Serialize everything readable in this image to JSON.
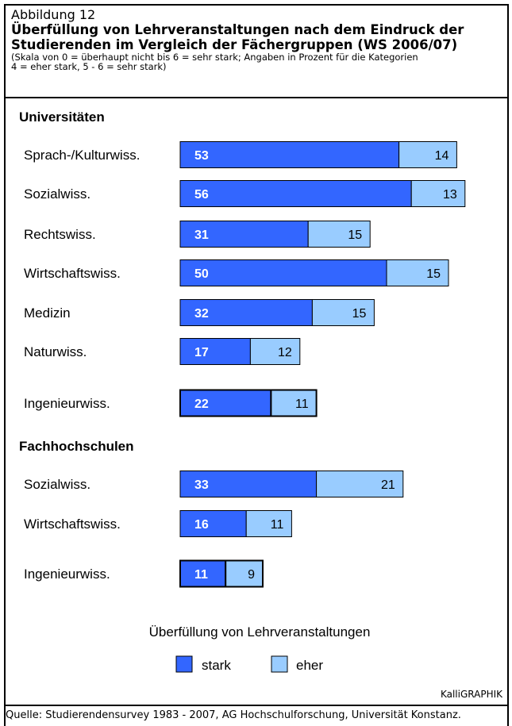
{
  "header": {
    "figure_label": "Abbildung 12",
    "title_line1": "Überfüllung von Lehrveranstaltungen nach dem Eindruck der",
    "title_line2": "Studierenden im Vergleich der Fächergruppen (WS 2006/07)",
    "note_line1": "(Skala von 0 = überhaupt nicht bis 6 = sehr stark; Angaben in Prozent für die Kategorien",
    "note_line2": "4 = eher stark, 5 - 6 = sehr stark)"
  },
  "colors": {
    "stark": "#3366ff",
    "eher": "#99ccff"
  },
  "chart_data": {
    "type": "bar",
    "orientation": "horizontal",
    "stacked": true,
    "title": "Überfüllung von Lehrveranstaltungen",
    "groups": [
      {
        "name": "Universitäten",
        "categories": [
          "Sprach-/Kulturwiss.",
          "Sozialwiss.",
          "Rechtswiss.",
          "Wirtschaftswiss.",
          "Medizin",
          "Naturwiss.",
          "Ingenieurwiss."
        ],
        "series": [
          {
            "name": "stark",
            "values": [
              53,
              56,
              31,
              50,
              32,
              17,
              22
            ]
          },
          {
            "name": "eher",
            "values": [
              14,
              13,
              15,
              15,
              15,
              12,
              11
            ]
          }
        ]
      },
      {
        "name": "Fachhochschulen",
        "categories": [
          "Sozialwiss.",
          "Wirtschaftswiss.",
          "Ingenieurwiss."
        ],
        "series": [
          {
            "name": "stark",
            "values": [
              33,
              16,
              11
            ]
          },
          {
            "name": "eher",
            "values": [
              21,
              11,
              9
            ]
          }
        ]
      }
    ],
    "legend": {
      "title": "Überfüllung von Lehrveranstaltungen",
      "entries": [
        "stark",
        "eher"
      ],
      "position": "bottom"
    }
  },
  "brand": "KalliGRAPHIK",
  "source": "Quelle: Studierendensurvey 1983 - 2007, AG Hochschulforschung, Universität Konstanz."
}
